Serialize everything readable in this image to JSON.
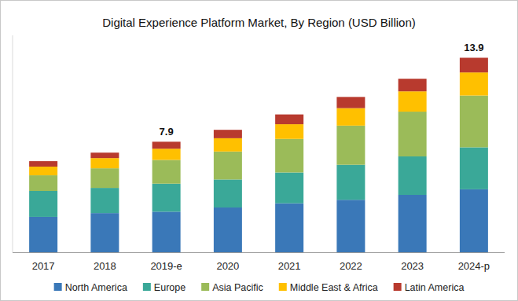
{
  "chart_data": {
    "type": "bar",
    "title": "Digital Experience Platform Market, By Region (USD Billion)",
    "stacked": true,
    "categories": [
      "2017",
      "2018",
      "2019-e",
      "2020",
      "2021",
      "2022",
      "2023",
      "2024-p"
    ],
    "series": [
      {
        "name": "North America",
        "color": "#3a78b8",
        "values": [
          2.53,
          2.8,
          2.9,
          3.2,
          3.5,
          3.75,
          4.1,
          4.5
        ]
      },
      {
        "name": "Europe",
        "color": "#3aa898",
        "values": [
          1.85,
          1.8,
          2.0,
          2.0,
          2.2,
          2.5,
          2.75,
          3.0
        ]
      },
      {
        "name": "Asia Pacific",
        "color": "#9bbb59",
        "values": [
          1.12,
          1.4,
          1.7,
          2.0,
          2.4,
          2.8,
          3.2,
          3.7
        ]
      },
      {
        "name": "Middle East & Africa",
        "color": "#ffc000",
        "values": [
          0.62,
          0.73,
          0.8,
          0.95,
          1.05,
          1.25,
          1.45,
          1.65
        ]
      },
      {
        "name": "Latin America",
        "color": "#b83a2e",
        "values": [
          0.39,
          0.39,
          0.5,
          0.6,
          0.7,
          0.8,
          0.9,
          1.05
        ]
      }
    ],
    "annotations": [
      {
        "category": "2019-e",
        "label": "7.9",
        "value": 7.9
      },
      {
        "category": "2024-p",
        "label": "13.9",
        "value": 13.9
      }
    ],
    "ylim": [
      0,
      15.5
    ],
    "tick_labels": "x",
    "legend": "bottom",
    "grid": false
  }
}
